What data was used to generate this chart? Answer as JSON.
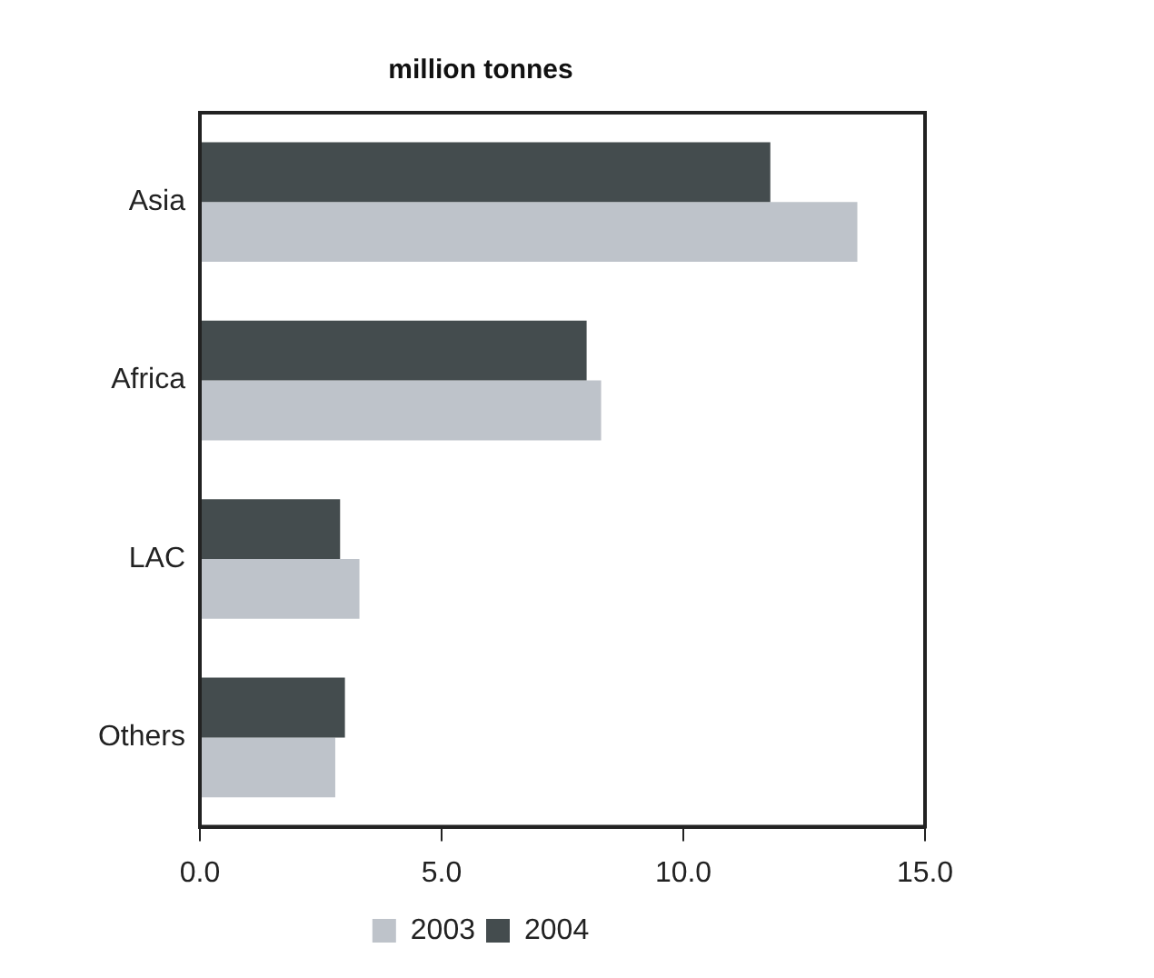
{
  "chart_data": {
    "type": "bar",
    "orientation": "horizontal",
    "title": "million tonnes",
    "categories": [
      "Asia",
      "Africa",
      "LAC",
      "Others"
    ],
    "series": [
      {
        "name": "2003",
        "color": "#bec3ca",
        "values": [
          13.6,
          8.3,
          3.3,
          2.8
        ]
      },
      {
        "name": "2004",
        "color": "#444c4e",
        "values": [
          11.8,
          8.0,
          2.9,
          3.0
        ]
      }
    ],
    "xlim": [
      0,
      15
    ],
    "xticks": [
      {
        "value": 0,
        "label": "0.0"
      },
      {
        "value": 5,
        "label": "5.0"
      },
      {
        "value": 10,
        "label": "10.0"
      },
      {
        "value": 15,
        "label": "15.0"
      }
    ],
    "grid": false,
    "legend": "bottom"
  }
}
